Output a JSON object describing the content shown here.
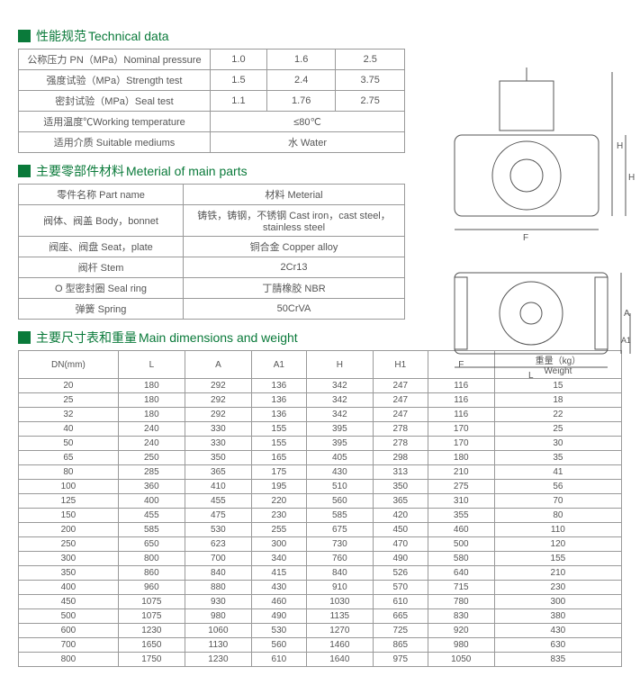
{
  "sections": {
    "technical": {
      "cn": "性能规范",
      "en": "Technical data"
    },
    "materials": {
      "cn": "主要零部件材料",
      "en": "Meterial of  main parts"
    },
    "dimensions": {
      "cn": "主要尺寸表和重量",
      "en": "Main dimensions and weight"
    }
  },
  "technical": {
    "rows": [
      {
        "label": "公称压力 PN（MPa）Nominal pressure",
        "v1": "1.0",
        "v2": "1.6",
        "v3": "2.5"
      },
      {
        "label": "强度试验（MPa）Strength test",
        "v1": "1.5",
        "v2": "2.4",
        "v3": "3.75"
      },
      {
        "label": "密封试验（MPa）Seal test",
        "v1": "1.1",
        "v2": "1.76",
        "v3": "2.75"
      }
    ],
    "temp_label": "适用温度℃Working temperature",
    "temp_value": "≤80℃",
    "medium_label": "适用介质 Suitable mediums",
    "medium_value": "水 Water"
  },
  "materials": {
    "head_part": "零件名称 Part name",
    "head_mat": "材料 Meterial",
    "rows": [
      {
        "part": "阀体、阀盖 Body，bonnet",
        "mat": "铸铁，铸钢，不锈钢 Cast iron，cast steel，stainless steel"
      },
      {
        "part": "阀座、阀盘 Seat，plate",
        "mat": "铜合金 Copper alloy"
      },
      {
        "part": "阀杆 Stem",
        "mat": "2Cr13"
      },
      {
        "part": "O 型密封圈 Seal ring",
        "mat": "丁腈橡胶 NBR"
      },
      {
        "part": "弹簧 Spring",
        "mat": "50CrVA"
      }
    ]
  },
  "dimensions": {
    "headers": [
      "DN(mm)",
      "L",
      "A",
      "A1",
      "H",
      "H1",
      "F",
      "重量（kg）\nWeight"
    ],
    "rows": [
      [
        "20",
        "180",
        "292",
        "136",
        "342",
        "247",
        "116",
        "15"
      ],
      [
        "25",
        "180",
        "292",
        "136",
        "342",
        "247",
        "116",
        "18"
      ],
      [
        "32",
        "180",
        "292",
        "136",
        "342",
        "247",
        "116",
        "22"
      ],
      [
        "40",
        "240",
        "330",
        "155",
        "395",
        "278",
        "170",
        "25"
      ],
      [
        "50",
        "240",
        "330",
        "155",
        "395",
        "278",
        "170",
        "30"
      ],
      [
        "65",
        "250",
        "350",
        "165",
        "405",
        "298",
        "180",
        "35"
      ],
      [
        "80",
        "285",
        "365",
        "175",
        "430",
        "313",
        "210",
        "41"
      ],
      [
        "100",
        "360",
        "410",
        "195",
        "510",
        "350",
        "275",
        "56"
      ],
      [
        "125",
        "400",
        "455",
        "220",
        "560",
        "365",
        "310",
        "70"
      ],
      [
        "150",
        "455",
        "475",
        "230",
        "585",
        "420",
        "355",
        "80"
      ],
      [
        "200",
        "585",
        "530",
        "255",
        "675",
        "450",
        "460",
        "110"
      ],
      [
        "250",
        "650",
        "623",
        "300",
        "730",
        "470",
        "500",
        "120"
      ],
      [
        "300",
        "800",
        "700",
        "340",
        "760",
        "490",
        "580",
        "155"
      ],
      [
        "350",
        "860",
        "840",
        "415",
        "840",
        "526",
        "640",
        "210"
      ],
      [
        "400",
        "960",
        "880",
        "430",
        "910",
        "570",
        "715",
        "230"
      ],
      [
        "450",
        "1075",
        "930",
        "460",
        "1030",
        "610",
        "780",
        "300"
      ],
      [
        "500",
        "1075",
        "980",
        "490",
        "1135",
        "665",
        "830",
        "380"
      ],
      [
        "600",
        "1230",
        "1060",
        "530",
        "1270",
        "725",
        "920",
        "430"
      ],
      [
        "700",
        "1650",
        "1130",
        "560",
        "1460",
        "865",
        "980",
        "630"
      ],
      [
        "800",
        "1750",
        "1230",
        "610",
        "1640",
        "975",
        "1050",
        "835"
      ]
    ]
  },
  "diagram_labels": {
    "F": "F",
    "L": "L",
    "H": "H",
    "H1": "H1",
    "A": "A",
    "A1": "A1"
  }
}
